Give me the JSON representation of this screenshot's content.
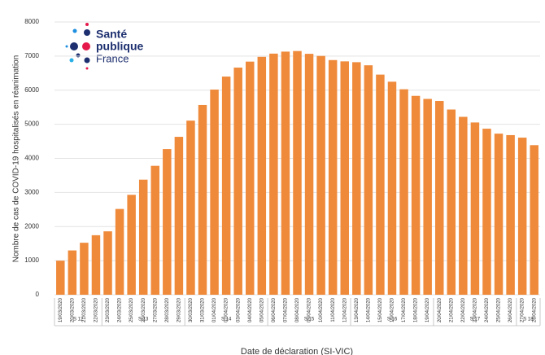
{
  "logo": {
    "line1": "Santé",
    "line2": "publique",
    "line3": "France"
  },
  "chart_data": {
    "type": "bar",
    "y_label": "Nombre de cas de COVID-19 hospitalisés en réanimation",
    "x_label": "Date de déclaration (SI-VIC)",
    "categories": [
      "19/03/2020",
      "20/03/2020",
      "21/03/2020",
      "22/03/2020",
      "23/03/2020",
      "24/03/2020",
      "25/03/2020",
      "26/03/2020",
      "27/03/2020",
      "28/03/2020",
      "29/03/2020",
      "30/03/2020",
      "31/03/2020",
      "01/04/2020",
      "02/04/2020",
      "03/04/2020",
      "04/04/2020",
      "05/04/2020",
      "06/04/2020",
      "07/04/2020",
      "08/04/2020",
      "09/04/2020",
      "10/04/2020",
      "11/04/2020",
      "12/04/2020",
      "13/04/2020",
      "14/04/2020",
      "15/04/2020",
      "16/04/2020",
      "17/04/2020",
      "18/04/2020",
      "19/04/2020",
      "20/04/2020",
      "21/04/2020",
      "22/04/2020",
      "23/04/2020",
      "24/04/2020",
      "25/04/2020",
      "26/04/2020",
      "27/04/2020",
      "28/04/2020"
    ],
    "values": [
      1000,
      1300,
      1525,
      1746,
      1860,
      2516,
      2931,
      3375,
      3781,
      4273,
      4632,
      5107,
      5565,
      6017,
      6399,
      6662,
      6838,
      6978,
      7072,
      7131,
      7148,
      7066,
      7004,
      6883,
      6845,
      6821,
      6730,
      6457,
      6248,
      6027,
      5833,
      5744,
      5683,
      5433,
      5218,
      5053,
      4870,
      4725,
      4682,
      4608,
      4387
    ],
    "weeks": [
      "S 12",
      "S 13",
      "S 14",
      "S 15",
      "S 16",
      "S 17",
      "S 18"
    ],
    "color": "#ef8a3b",
    "ylim": [
      0,
      8000
    ],
    "yticks": [
      0,
      1000,
      2000,
      3000,
      4000,
      5000,
      6000,
      7000,
      8000
    ],
    "grid": true
  }
}
